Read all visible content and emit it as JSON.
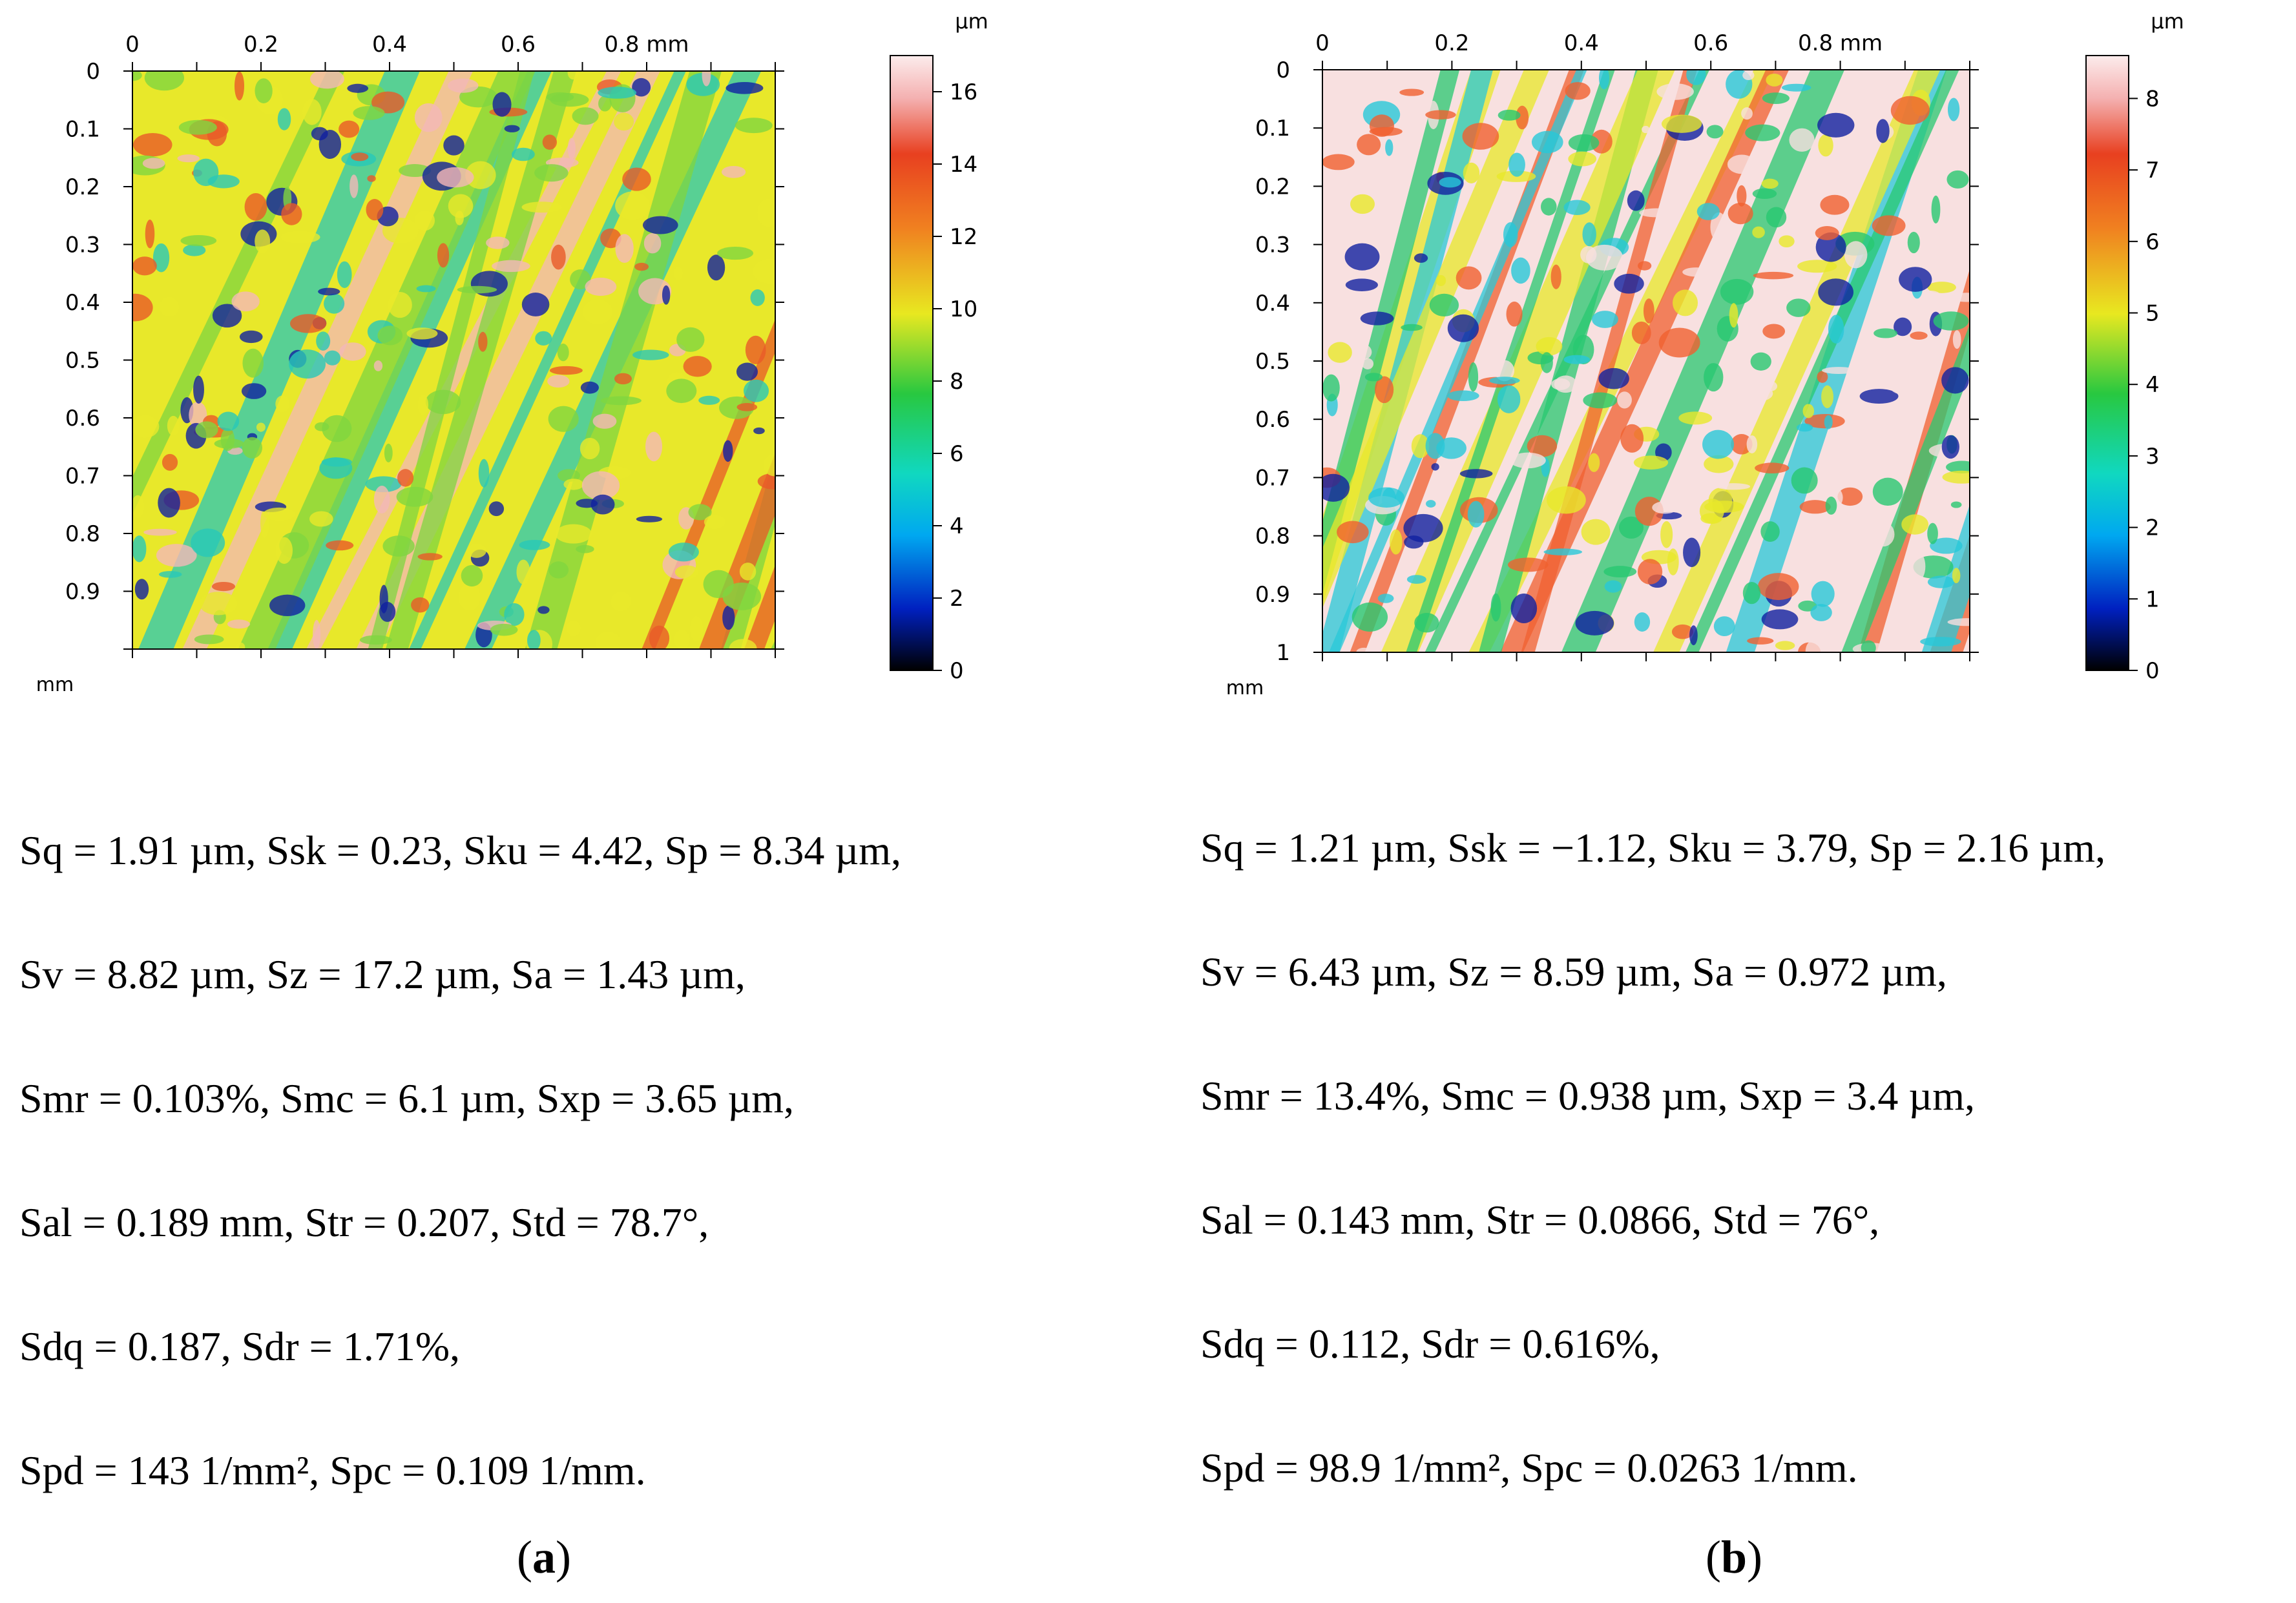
{
  "chart_data": [
    {
      "type": "heatmap",
      "panel": "a",
      "xlabel": "mm",
      "ylabel": "mm",
      "x_unit_label": "0.8 mm",
      "x_ticks": [
        "0",
        "0.2",
        "0.4",
        "0.6"
      ],
      "y_ticks": [
        "0",
        "0.1",
        "0.2",
        "0.3",
        "0.4",
        "0.5",
        "0.6",
        "0.7",
        "0.8",
        "0.9"
      ],
      "xlim": [
        0,
        1
      ],
      "ylim": [
        0,
        1
      ],
      "colorbar": {
        "unit": "µm",
        "ticks": [
          "0",
          "2",
          "4",
          "6",
          "8",
          "10",
          "12",
          "14",
          "16"
        ],
        "range": [
          0,
          17
        ]
      },
      "dominant_colors": [
        "#e8e82a",
        "#7fd640",
        "#28c8b8",
        "#e85a28",
        "#f4b8b8",
        "#1020a0"
      ]
    },
    {
      "type": "heatmap",
      "panel": "b",
      "xlabel": "mm",
      "ylabel": "mm",
      "x_unit_label": "0.8 mm",
      "x_ticks": [
        "0",
        "0.2",
        "0.4",
        "0.6"
      ],
      "y_ticks": [
        "0",
        "0.1",
        "0.2",
        "0.3",
        "0.4",
        "0.5",
        "0.6",
        "0.7",
        "0.8",
        "0.9",
        "1"
      ],
      "xlim": [
        0,
        1
      ],
      "ylim": [
        0,
        1
      ],
      "colorbar": {
        "unit": "µm",
        "ticks": [
          "0",
          "1",
          "2",
          "3",
          "4",
          "5",
          "6",
          "7",
          "8"
        ],
        "range": [
          0,
          8.6
        ]
      },
      "dominant_colors": [
        "#f8e0e0",
        "#f06030",
        "#e8e82a",
        "#28c870",
        "#28c8d8",
        "#1020a0"
      ]
    }
  ],
  "panels": [
    {
      "id": "a",
      "caption_open": "(",
      "caption_letter": "a",
      "caption_close": ")",
      "lines": [
        "Sq = 1.91 µm, Ssk = 0.23, Sku = 4.42, Sp = 8.34 µm,",
        "Sv = 8.82 µm, Sz = 17.2 µm, Sa = 1.43 µm,",
        "Smr = 0.103%, Smc = 6.1 µm, Sxp = 3.65 µm,",
        "Sal = 0.189 mm, Str = 0.207, Std = 78.7°,",
        "Sdq = 0.187, Sdr = 1.71%,",
        "Spd = 143 1/mm², Spc = 0.109 1/mm."
      ]
    },
    {
      "id": "b",
      "caption_open": "(",
      "caption_letter": "b",
      "caption_close": ")",
      "lines": [
        "Sq = 1.21 µm, Ssk = −1.12, Sku = 3.79, Sp = 2.16 µm,",
        "Sv = 6.43 µm, Sz = 8.59 µm, Sa = 0.972 µm,",
        "Smr = 13.4%, Smc = 0.938 µm, Sxp = 3.4 µm,",
        "Sal = 0.143 mm, Str = 0.0866, Std = 76°,",
        "Sdq = 0.112, Sdr = 0.616%,",
        "Spd = 98.9 1/mm², Spc = 0.0263 1/mm."
      ]
    }
  ]
}
